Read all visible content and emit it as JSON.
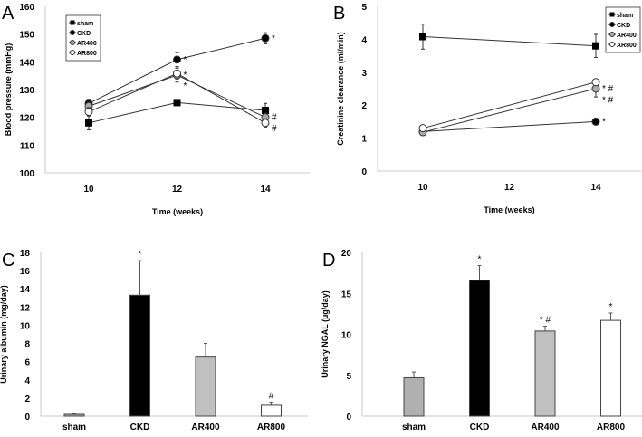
{
  "chart_data": [
    {
      "panel": "A",
      "type": "line",
      "xlabel": "Time (weeks)",
      "ylabel": "Blood pressure (mmHg)",
      "x": [
        10,
        12,
        14
      ],
      "xticks": [
        10,
        12,
        14
      ],
      "xlim": [
        9,
        15
      ],
      "ylim": [
        100,
        160
      ],
      "yticks": [
        100,
        110,
        120,
        130,
        140,
        150,
        160
      ],
      "legend": "top-left",
      "series": [
        {
          "name": "sham",
          "marker": "square",
          "fill": "#000000",
          "values": [
            118,
            125.3,
            122.5
          ],
          "err": [
            2.5,
            1,
            2.5
          ],
          "marks": [
            "",
            "",
            ""
          ]
        },
        {
          "name": "CKD",
          "marker": "circle",
          "fill": "#000000",
          "values": [
            125,
            140.8,
            148.5
          ],
          "err": [
            1.5,
            2.5,
            2
          ],
          "marks": [
            "",
            "*",
            "*"
          ]
        },
        {
          "name": "AR400",
          "marker": "circle",
          "fill": "#aaaaaa",
          "values": [
            124,
            135.2,
            120
          ],
          "err": [
            1.5,
            2.5,
            1.5
          ],
          "marks": [
            "",
            "*",
            "#"
          ]
        },
        {
          "name": "AR800",
          "marker": "circle",
          "fill": "#ffffff",
          "values": [
            122,
            135.8,
            118
          ],
          "err": [
            1.5,
            2,
            1.5
          ],
          "marks": [
            "",
            "*",
            "#"
          ]
        }
      ]
    },
    {
      "panel": "B",
      "type": "line",
      "xlabel": "Time (weeks)",
      "ylabel": "Creatinine clearance (ml/min)",
      "x": [
        10,
        14
      ],
      "xticks": [
        10,
        12,
        14
      ],
      "xlim": [
        9,
        15
      ],
      "ylim": [
        0,
        5
      ],
      "yticks": [
        0,
        1,
        2,
        3,
        4,
        5
      ],
      "legend": "top-right",
      "series": [
        {
          "name": "sham",
          "marker": "square",
          "fill": "#000000",
          "values": [
            4.08,
            3.8
          ],
          "err": [
            0.38,
            0.35
          ],
          "marks": [
            "",
            ""
          ]
        },
        {
          "name": "CKD",
          "marker": "circle",
          "fill": "#000000",
          "values": [
            1.2,
            1.5
          ],
          "err": [
            0.05,
            0.05
          ],
          "marks": [
            "",
            "*"
          ]
        },
        {
          "name": "AR400",
          "marker": "circle",
          "fill": "#aaaaaa",
          "values": [
            1.18,
            2.5
          ],
          "err": [
            0.08,
            0.25
          ],
          "marks": [
            "",
            "* #"
          ]
        },
        {
          "name": "AR800",
          "marker": "circle",
          "fill": "#ffffff",
          "values": [
            1.3,
            2.7
          ],
          "err": [
            0.08,
            0.1
          ],
          "marks": [
            "",
            "* #"
          ]
        }
      ]
    },
    {
      "panel": "C",
      "type": "bar",
      "ylabel": "Urinary albumin (mg/day)",
      "categories": [
        "sham",
        "CKD",
        "AR400",
        "AR800"
      ],
      "values": [
        0.2,
        13.3,
        6.5,
        1.2
      ],
      "err": [
        0.1,
        3.8,
        1.5,
        0.35
      ],
      "marks": [
        "",
        "*",
        "",
        "#"
      ],
      "fills": [
        "#b0b0b0",
        "#000000",
        "#c0c0c0",
        "#ffffff"
      ],
      "ylim": [
        0,
        18
      ],
      "yticks": [
        0,
        2,
        4,
        6,
        8,
        10,
        12,
        14,
        16,
        18
      ]
    },
    {
      "panel": "D",
      "type": "bar",
      "ylabel": "Urinary NGAL (µg/day)",
      "categories": [
        "sham",
        "CKD",
        "AR400",
        "AR800"
      ],
      "values": [
        4.7,
        16.6,
        10.4,
        11.7
      ],
      "err": [
        0.7,
        1.8,
        0.6,
        0.9
      ],
      "marks": [
        "",
        "*",
        "* #",
        "*"
      ],
      "fills": [
        "#b0b0b0",
        "#000000",
        "#c0c0c0",
        "#ffffff"
      ],
      "ylim": [
        0,
        20
      ],
      "yticks": [
        0,
        5,
        10,
        15,
        20
      ]
    }
  ]
}
